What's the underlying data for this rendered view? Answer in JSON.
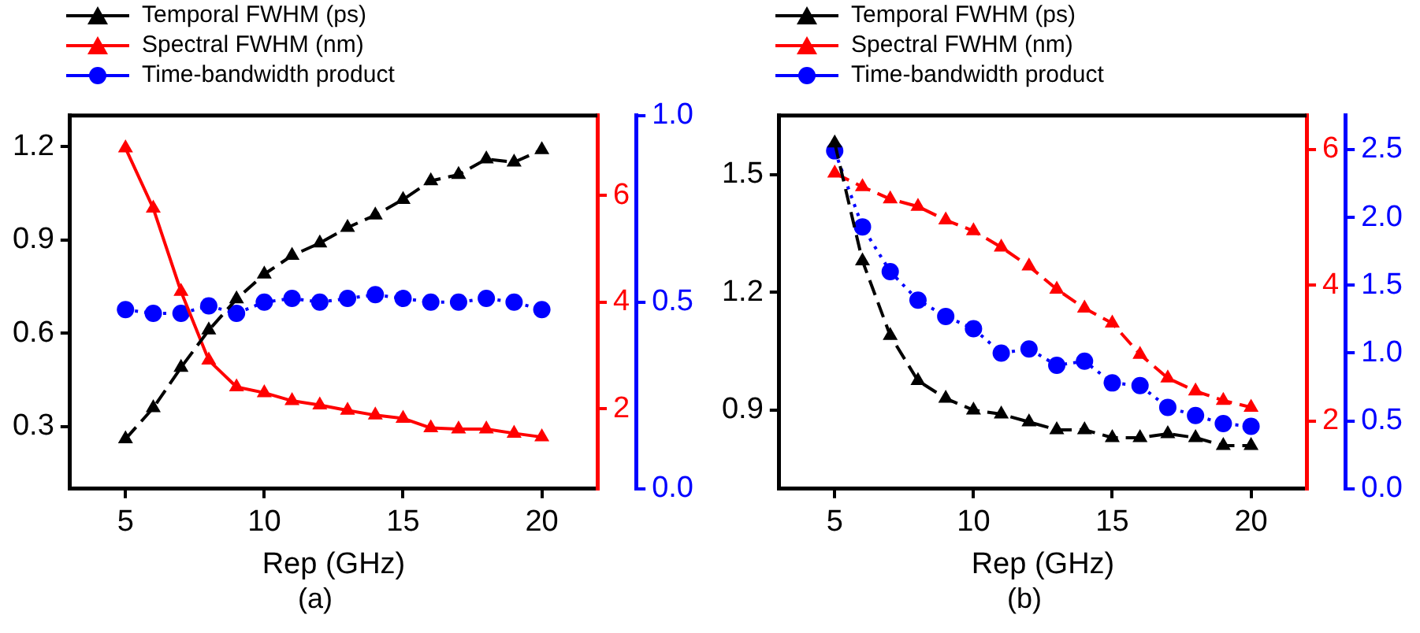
{
  "chart_data": [
    {
      "type": "line",
      "xlabel": "Rep (GHz)",
      "x": [
        5,
        6,
        7,
        8,
        9,
        10,
        11,
        12,
        13,
        14,
        15,
        16,
        17,
        18,
        19,
        20
      ],
      "xlim": [
        3,
        22
      ],
      "xticks": [
        5,
        10,
        15,
        20
      ],
      "ylim": [
        0.1,
        1.3
      ],
      "yticks": [
        0.3,
        0.6,
        0.9,
        1.2
      ],
      "y2lim": [
        0.5,
        7.5
      ],
      "y2ticks": [
        2,
        4,
        6
      ],
      "y3lim": [
        0,
        1
      ],
      "y3ticks": [
        {
          "value": 0,
          "label": "0.0"
        },
        0.5,
        {
          "value": 1,
          "label": "1.0"
        }
      ],
      "grid": false,
      "legend": "top left",
      "annotations": [
        "(a)"
      ],
      "series": [
        {
          "name": "Temporal FWHM (ps)",
          "color": "#000000",
          "marker": "triangle",
          "line_style": "dashed",
          "values": [
            0.26,
            0.36,
            0.49,
            0.61,
            0.71,
            0.79,
            0.85,
            0.89,
            0.94,
            0.98,
            1.03,
            1.09,
            1.11,
            1.16,
            1.15,
            1.19
          ]
        },
        {
          "name": "Spectral FWHM (nm)",
          "color": "#ff0000",
          "marker": "triangle",
          "line_style": "solid",
          "axis": "y2",
          "values": [
            6.89,
            5.76,
            4.2,
            2.91,
            2.41,
            2.3,
            2.15,
            2.07,
            1.97,
            1.88,
            1.82,
            1.64,
            1.62,
            1.62,
            1.54,
            1.47
          ]
        },
        {
          "name": "Time-bandwidth product",
          "color": "#0000ff",
          "marker": "circle",
          "line_style": "dotted",
          "axis": "y3",
          "values": [
            0.48,
            0.47,
            0.47,
            0.49,
            0.47,
            0.5,
            0.51,
            0.5,
            0.51,
            0.52,
            0.51,
            0.5,
            0.5,
            0.51,
            0.5,
            0.48
          ]
        }
      ]
    },
    {
      "type": "line",
      "xlabel": "Rep (GHz)",
      "x": [
        5,
        6,
        7,
        8,
        9,
        10,
        11,
        12,
        13,
        14,
        15,
        16,
        17,
        18,
        19,
        20
      ],
      "xlim": [
        3,
        22
      ],
      "xticks": [
        5,
        10,
        15,
        20
      ],
      "ylim": [
        0.7,
        1.65
      ],
      "yticks": [
        0.9,
        1.2,
        1.5
      ],
      "y2lim": [
        1,
        6.5
      ],
      "y2ticks": [
        2,
        4,
        6
      ],
      "y3lim": [
        0,
        2.75
      ],
      "y3ticks": [
        {
          "value": 0,
          "label": "0.0"
        },
        0.5,
        {
          "value": 1,
          "label": "1.0"
        },
        1.5,
        {
          "value": 2,
          "label": "2.0"
        },
        2.5
      ],
      "grid": false,
      "legend": "top left",
      "annotations": [
        "(b)"
      ],
      "series": [
        {
          "name": "Temporal FWHM (ps)",
          "color": "#000000",
          "marker": "triangle",
          "line_style": "dashed",
          "values": [
            1.58,
            1.28,
            1.09,
            0.975,
            0.93,
            0.9,
            0.89,
            0.87,
            0.85,
            0.85,
            0.83,
            0.83,
            0.84,
            0.83,
            0.81,
            0.81
          ]
        },
        {
          "name": "Spectral FWHM (nm)",
          "color": "#ff0000",
          "marker": "triangle",
          "line_style": "dashed",
          "axis": "y2",
          "values": [
            5.65,
            5.45,
            5.27,
            5.16,
            4.96,
            4.8,
            4.56,
            4.28,
            3.94,
            3.66,
            3.44,
            2.98,
            2.63,
            2.44,
            2.3,
            2.2
          ]
        },
        {
          "name": "Time-bandwidth product",
          "color": "#0000ff",
          "marker": "circle",
          "line_style": "dotted",
          "axis": "y3",
          "values": [
            2.49,
            1.93,
            1.6,
            1.39,
            1.27,
            1.18,
            1.0,
            1.03,
            0.91,
            0.94,
            0.78,
            0.76,
            0.6,
            0.54,
            0.48,
            0.46
          ]
        }
      ]
    }
  ]
}
